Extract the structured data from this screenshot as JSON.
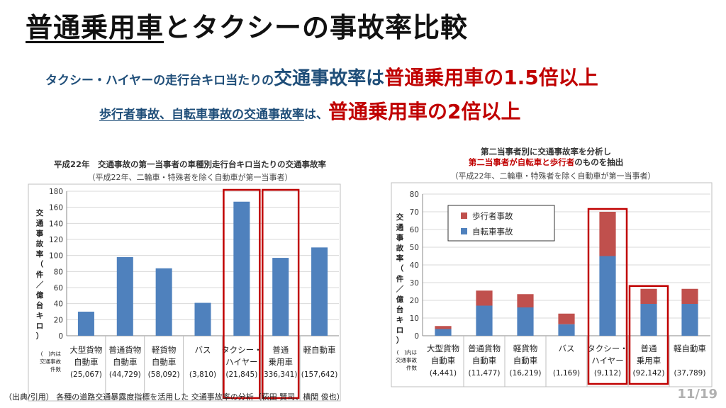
{
  "title": {
    "underlined": "普通乗用車",
    "rest": "とタクシーの事故率比較"
  },
  "subtitle1": {
    "part1": "タクシー・ハイヤーの走行台キロ当たりの",
    "part2": "交通事故率",
    "part3": "は",
    "part4": "普通乗用車の1.5倍以上"
  },
  "subtitle2": {
    "part1": "歩行者事故、自転車事故の交通事故率",
    "part2": "は、",
    "part3": "普通乗用車の2倍以上"
  },
  "footer": "（出典/引用） 各種の道路交通暴露度指標を活用した 交通事故率の分析（萩田 賢司、横関 俊也）",
  "page_number": "11/19",
  "colors": {
    "bar_blue": "#4f81bd",
    "bar_red": "#c0504d",
    "highlight": "#c00000",
    "title_blue": "#1f4e79"
  },
  "chart_data": [
    {
      "type": "bar",
      "title": "平成22年　交通事故の第一当事者の車種別走行台キロ当たりの交通事故率",
      "subtitle": "（平成22年、二輪車・特殊者を除く自動車が第一当事者）",
      "ylabel": "交通事故率（件／億台キロ）",
      "ylim": [
        0,
        180
      ],
      "yticks": [
        "0",
        "20",
        "40",
        "60",
        "80",
        "100",
        "120",
        "140",
        "160",
        "180"
      ],
      "grid": true,
      "count_header": [
        "(　)内は",
        "交通事故",
        "件数"
      ],
      "categories": [
        {
          "lines": [
            "大型貨物",
            "自動車"
          ],
          "count": "(25,067)"
        },
        {
          "lines": [
            "普通貨物",
            "自動車"
          ],
          "count": "(44,729)"
        },
        {
          "lines": [
            "軽貨物",
            "自動車"
          ],
          "count": "(58,092)"
        },
        {
          "lines": [
            "バス"
          ],
          "count": "(3,810)"
        },
        {
          "lines": [
            "タクシー・",
            "ハイヤー"
          ],
          "count": "(21,845)"
        },
        {
          "lines": [
            "普通",
            "乗用車"
          ],
          "count": "336,341)"
        },
        {
          "lines": [
            "軽自動車"
          ],
          "count": "(157,642)"
        }
      ],
      "values": [
        30,
        98,
        84,
        41,
        167,
        97,
        110
      ],
      "highlight": [
        4,
        5
      ]
    },
    {
      "type": "bar",
      "stacked": true,
      "title": "第二当事者別に交通事故率を分析し",
      "title2": "第二当事者が自転車と歩行者のものを抽出",
      "title2_red": "第二当事者が自転車と歩行者",
      "title2_rest": "のものを抽出",
      "subtitle": "（平成22年、二輪車・特殊者を除く自動車が第一当事者）",
      "ylabel": "交通事故率（件／億台キロ）",
      "ylim": [
        0,
        80
      ],
      "yticks": [
        "0",
        "10",
        "20",
        "30",
        "40",
        "50",
        "60",
        "70",
        "80"
      ],
      "grid": true,
      "legend_position": "top-left",
      "count_header": [
        "(　)内は",
        "交通事故",
        "件数"
      ],
      "categories": [
        {
          "lines": [
            "大型貨物",
            "自動車"
          ],
          "count": "(4,441)"
        },
        {
          "lines": [
            "普通貨物",
            "自動車"
          ],
          "count": "(11,477)"
        },
        {
          "lines": [
            "軽貨物",
            "自動車"
          ],
          "count": "(16,219)"
        },
        {
          "lines": [
            "バス"
          ],
          "count": "(1,169)"
        },
        {
          "lines": [
            "タクシー・",
            "ハイヤー"
          ],
          "count": "(9,112)"
        },
        {
          "lines": [
            "普通",
            "乗用車"
          ],
          "count": "(92,142)"
        },
        {
          "lines": [
            "軽自動車"
          ],
          "count": "(37,789)"
        }
      ],
      "series": [
        {
          "name": "自転車事故",
          "values": [
            3.8,
            17,
            16,
            6.5,
            45,
            18,
            18
          ]
        },
        {
          "name": "歩行者事故",
          "values": [
            1.7,
            8.5,
            7.5,
            6,
            25,
            8.5,
            8.5
          ]
        }
      ],
      "legend_order": [
        1,
        0
      ],
      "highlight": [
        4,
        5
      ]
    }
  ]
}
